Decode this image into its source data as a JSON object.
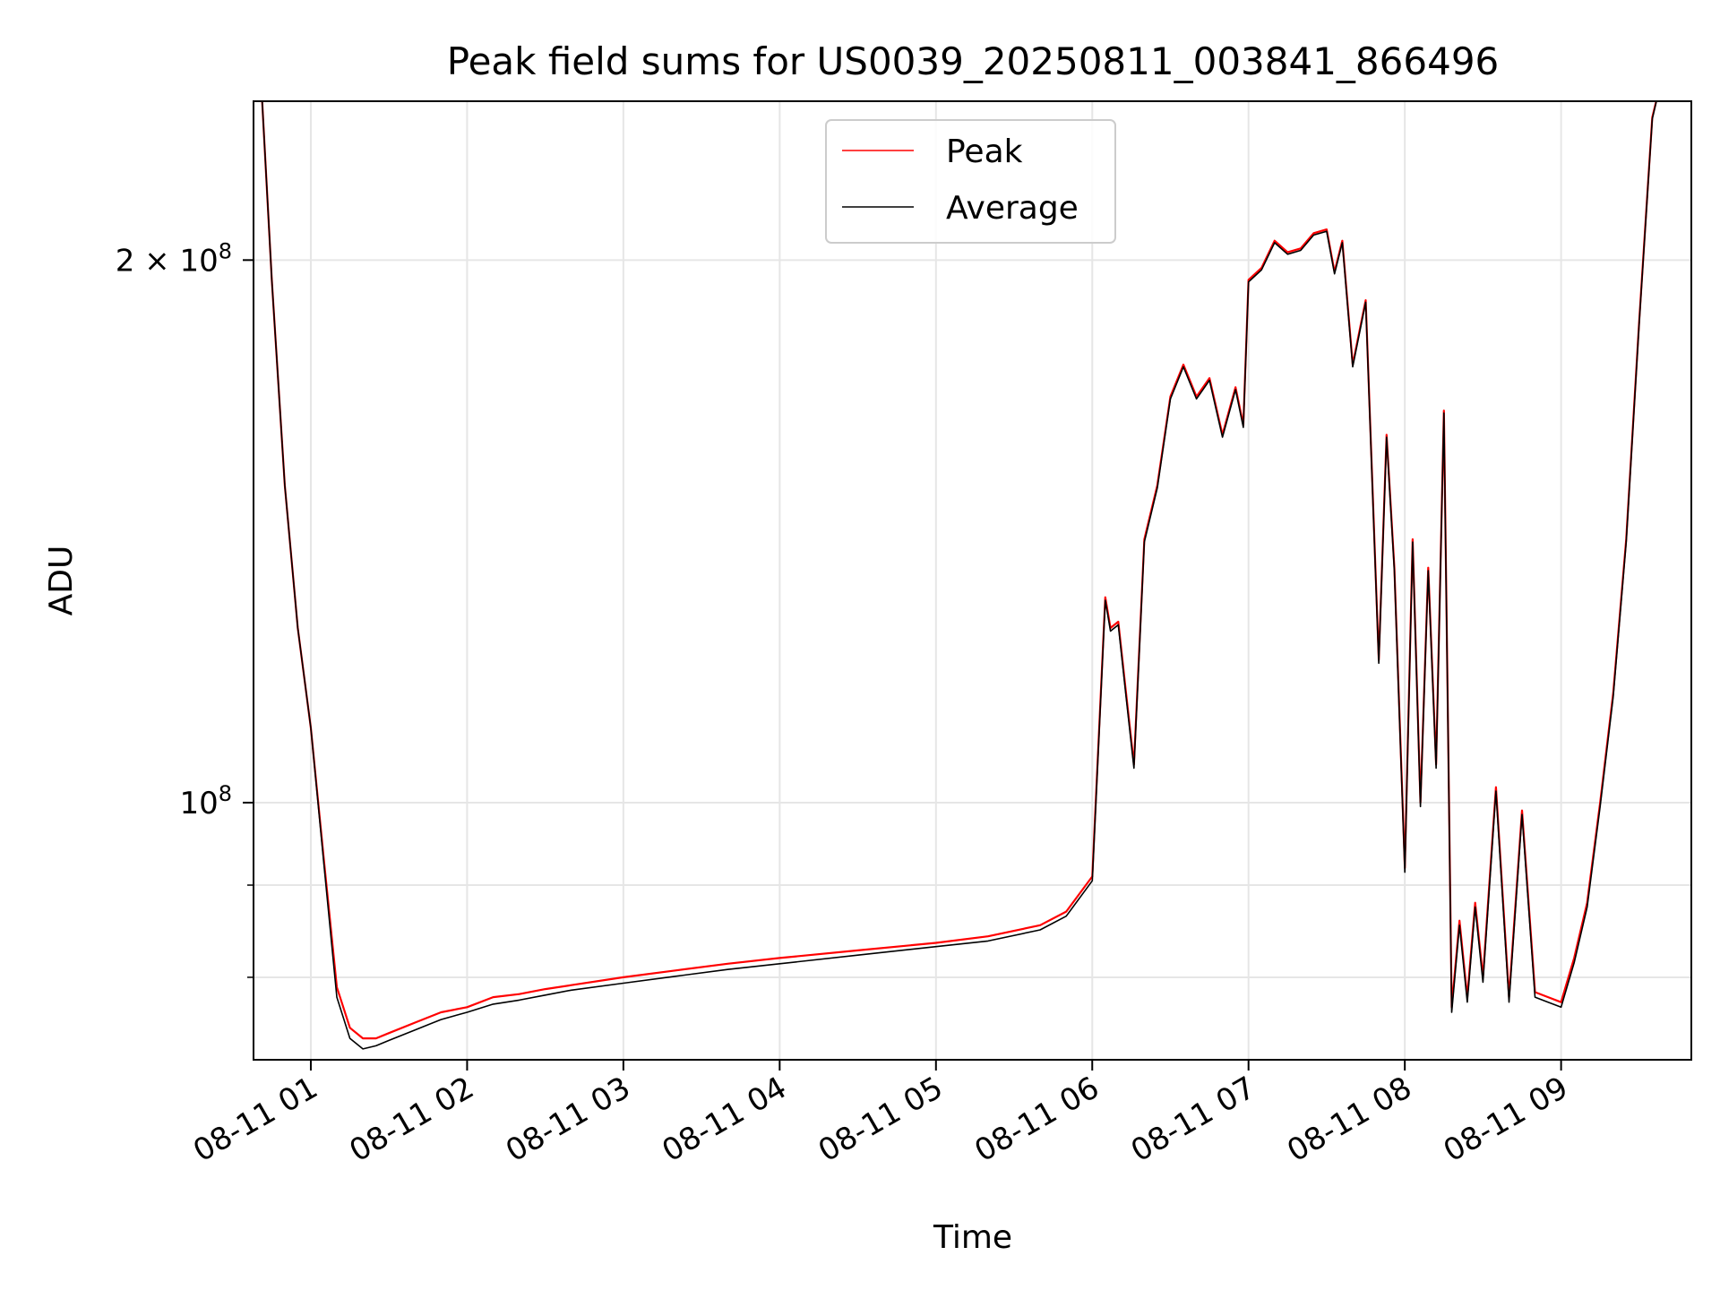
{
  "chart_data": {
    "type": "line",
    "title": "Peak field sums for US0039_20250811_003841_866496",
    "xlabel": "Time",
    "ylabel": "ADU",
    "yscale": "log",
    "ylim": [
      72000000,
      245000000
    ],
    "xlim": [
      "2025-08-11T00:38",
      "2025-08-11T09:50"
    ],
    "grid": true,
    "legend_loc": "upper center",
    "x_ticks": [
      {
        "value": "2025-08-11T01:00",
        "label": "08-11 01"
      },
      {
        "value": "2025-08-11T02:00",
        "label": "08-11 02"
      },
      {
        "value": "2025-08-11T03:00",
        "label": "08-11 03"
      },
      {
        "value": "2025-08-11T04:00",
        "label": "08-11 04"
      },
      {
        "value": "2025-08-11T05:00",
        "label": "08-11 05"
      },
      {
        "value": "2025-08-11T06:00",
        "label": "08-11 06"
      },
      {
        "value": "2025-08-11T07:00",
        "label": "08-11 07"
      },
      {
        "value": "2025-08-11T08:00",
        "label": "08-11 08"
      },
      {
        "value": "2025-08-11T09:00",
        "label": "08-11 09"
      }
    ],
    "y_ticks": [
      {
        "value": 100000000,
        "label_base": "10",
        "label_exp": "8"
      },
      {
        "value": 200000000,
        "label_base": "2 × 10",
        "label_exp": "8"
      }
    ],
    "y_minor_ticks": [
      80000000,
      90000000
    ],
    "series": [
      {
        "name": "Peak",
        "color": "#ff0000",
        "x": [
          "2025-08-11T00:41",
          "2025-08-11T00:45",
          "2025-08-11T00:50",
          "2025-08-11T00:55",
          "2025-08-11T01:00",
          "2025-08-11T01:05",
          "2025-08-11T01:10",
          "2025-08-11T01:15",
          "2025-08-11T01:20",
          "2025-08-11T01:25",
          "2025-08-11T01:30",
          "2025-08-11T01:40",
          "2025-08-11T01:50",
          "2025-08-11T02:00",
          "2025-08-11T02:10",
          "2025-08-11T02:20",
          "2025-08-11T02:30",
          "2025-08-11T02:40",
          "2025-08-11T03:00",
          "2025-08-11T03:20",
          "2025-08-11T03:40",
          "2025-08-11T04:00",
          "2025-08-11T04:30",
          "2025-08-11T05:00",
          "2025-08-11T05:20",
          "2025-08-11T05:40",
          "2025-08-11T05:50",
          "2025-08-11T06:00",
          "2025-08-11T06:05",
          "2025-08-11T06:07",
          "2025-08-11T06:10",
          "2025-08-11T06:13",
          "2025-08-11T06:16",
          "2025-08-11T06:20",
          "2025-08-11T06:25",
          "2025-08-11T06:30",
          "2025-08-11T06:35",
          "2025-08-11T06:40",
          "2025-08-11T06:45",
          "2025-08-11T06:50",
          "2025-08-11T06:55",
          "2025-08-11T06:58",
          "2025-08-11T07:00",
          "2025-08-11T07:05",
          "2025-08-11T07:10",
          "2025-08-11T07:15",
          "2025-08-11T07:20",
          "2025-08-11T07:25",
          "2025-08-11T07:30",
          "2025-08-11T07:33",
          "2025-08-11T07:36",
          "2025-08-11T07:40",
          "2025-08-11T07:45",
          "2025-08-11T07:50",
          "2025-08-11T07:53",
          "2025-08-11T07:56",
          "2025-08-11T08:00",
          "2025-08-11T08:03",
          "2025-08-11T08:06",
          "2025-08-11T08:09",
          "2025-08-11T08:12",
          "2025-08-11T08:15",
          "2025-08-11T08:18",
          "2025-08-11T08:21",
          "2025-08-11T08:24",
          "2025-08-11T08:27",
          "2025-08-11T08:30",
          "2025-08-11T08:35",
          "2025-08-11T08:40",
          "2025-08-11T08:45",
          "2025-08-11T08:50",
          "2025-08-11T08:55",
          "2025-08-11T09:00",
          "2025-08-11T09:05",
          "2025-08-11T09:10",
          "2025-08-11T09:15",
          "2025-08-11T09:20",
          "2025-08-11T09:25",
          "2025-08-11T09:30",
          "2025-08-11T09:35",
          "2025-08-11T09:38"
        ],
        "y": [
          250000000,
          195000000,
          150000000,
          125000000,
          110000000,
          93000000,
          79000000,
          75000000,
          74000000,
          74000000,
          74500000,
          75500000,
          76500000,
          77000000,
          78000000,
          78300000,
          78800000,
          79200000,
          80000000,
          80700000,
          81400000,
          82000000,
          82800000,
          83600000,
          84300000,
          85500000,
          87000000,
          91000000,
          130000000,
          125000000,
          126000000,
          115000000,
          105000000,
          140000000,
          150000000,
          168000000,
          175000000,
          168000000,
          172000000,
          160000000,
          170000000,
          162000000,
          195000000,
          198000000,
          205000000,
          202000000,
          203000000,
          207000000,
          208000000,
          197000000,
          205000000,
          175000000,
          190000000,
          120000000,
          160000000,
          135000000,
          92000000,
          140000000,
          100000000,
          135000000,
          105000000,
          165000000,
          77000000,
          86000000,
          78000000,
          88000000,
          80000000,
          102000000,
          78000000,
          99000000,
          78500000,
          78000000,
          77500000,
          82000000,
          88000000,
          100000000,
          115000000,
          140000000,
          185000000,
          240000000,
          250000000
        ]
      },
      {
        "name": "Average",
        "color": "#000000",
        "x": [
          "2025-08-11T00:41",
          "2025-08-11T00:45",
          "2025-08-11T00:50",
          "2025-08-11T00:55",
          "2025-08-11T01:00",
          "2025-08-11T01:05",
          "2025-08-11T01:10",
          "2025-08-11T01:15",
          "2025-08-11T01:20",
          "2025-08-11T01:25",
          "2025-08-11T01:30",
          "2025-08-11T01:40",
          "2025-08-11T01:50",
          "2025-08-11T02:00",
          "2025-08-11T02:10",
          "2025-08-11T02:20",
          "2025-08-11T02:30",
          "2025-08-11T02:40",
          "2025-08-11T03:00",
          "2025-08-11T03:20",
          "2025-08-11T03:40",
          "2025-08-11T04:00",
          "2025-08-11T04:30",
          "2025-08-11T05:00",
          "2025-08-11T05:20",
          "2025-08-11T05:40",
          "2025-08-11T05:50",
          "2025-08-11T06:00",
          "2025-08-11T06:05",
          "2025-08-11T06:07",
          "2025-08-11T06:10",
          "2025-08-11T06:13",
          "2025-08-11T06:16",
          "2025-08-11T06:20",
          "2025-08-11T06:25",
          "2025-08-11T06:30",
          "2025-08-11T06:35",
          "2025-08-11T06:40",
          "2025-08-11T06:45",
          "2025-08-11T06:50",
          "2025-08-11T06:55",
          "2025-08-11T06:58",
          "2025-08-11T07:00",
          "2025-08-11T07:05",
          "2025-08-11T07:10",
          "2025-08-11T07:15",
          "2025-08-11T07:20",
          "2025-08-11T07:25",
          "2025-08-11T07:30",
          "2025-08-11T07:33",
          "2025-08-11T07:36",
          "2025-08-11T07:40",
          "2025-08-11T07:45",
          "2025-08-11T07:50",
          "2025-08-11T07:53",
          "2025-08-11T07:56",
          "2025-08-11T08:00",
          "2025-08-11T08:03",
          "2025-08-11T08:06",
          "2025-08-11T08:09",
          "2025-08-11T08:12",
          "2025-08-11T08:15",
          "2025-08-11T08:18",
          "2025-08-11T08:21",
          "2025-08-11T08:24",
          "2025-08-11T08:27",
          "2025-08-11T08:30",
          "2025-08-11T08:35",
          "2025-08-11T08:40",
          "2025-08-11T08:45",
          "2025-08-11T08:50",
          "2025-08-11T08:55",
          "2025-08-11T09:00",
          "2025-08-11T09:05",
          "2025-08-11T09:10",
          "2025-08-11T09:15",
          "2025-08-11T09:20",
          "2025-08-11T09:25",
          "2025-08-11T09:30",
          "2025-08-11T09:35",
          "2025-08-11T09:38"
        ],
        "y": [
          250000000,
          195000000,
          150000000,
          125000000,
          110000000,
          92500000,
          78000000,
          74000000,
          73000000,
          73300000,
          73800000,
          74800000,
          75800000,
          76500000,
          77300000,
          77700000,
          78200000,
          78700000,
          79400000,
          80100000,
          80800000,
          81400000,
          82300000,
          83200000,
          83800000,
          85000000,
          86500000,
          90500000,
          129500000,
          124500000,
          125500000,
          114500000,
          104500000,
          139500000,
          149500000,
          167500000,
          174500000,
          167500000,
          171500000,
          159500000,
          169500000,
          161500000,
          194500000,
          197500000,
          204500000,
          201500000,
          202500000,
          206500000,
          207500000,
          196500000,
          204500000,
          174500000,
          189500000,
          119500000,
          159500000,
          134500000,
          91500000,
          139500000,
          99500000,
          134500000,
          104500000,
          164500000,
          76500000,
          85500000,
          77500000,
          87500000,
          79500000,
          101500000,
          77500000,
          98500000,
          78000000,
          77500000,
          77000000,
          81500000,
          87500000,
          99500000,
          114500000,
          139500000,
          184500000,
          239500000,
          250000000
        ]
      }
    ]
  }
}
